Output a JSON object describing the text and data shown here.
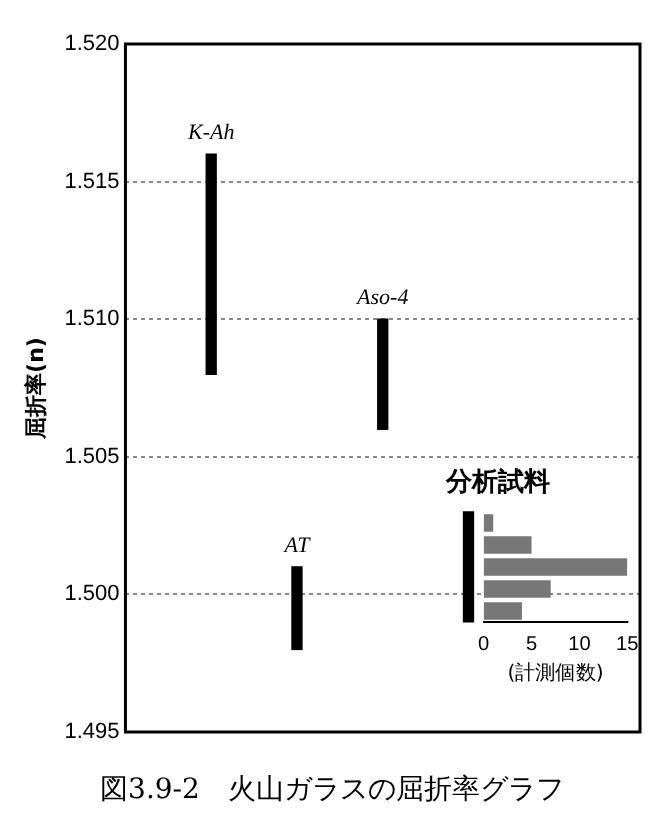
{
  "chart_data": [
    {
      "type": "bar",
      "ylabel": "屈折率(n)",
      "categories": [
        null,
        "K-Ah",
        "AT",
        "Aso-4",
        null,
        null,
        null
      ],
      "base": [
        null,
        1.508,
        1.498,
        1.506,
        1.499,
        null,
        null
      ],
      "values": [
        null,
        0.008,
        0.003,
        0.004,
        0.004,
        null,
        null
      ],
      "color": "#000000",
      "ylim": [
        1.495,
        1.52
      ],
      "yticks": [
        1.495,
        {
          "value": 1.5,
          "label": "1.500"
        },
        1.505,
        {
          "value": 1.51,
          "label": "1.510"
        },
        1.515,
        {
          "value": 1.52,
          "label": "1.520"
        }
      ],
      "grid": "y",
      "legend": false,
      "tick_labels": "y",
      "annotations": [
        "図3.9-2　火山ガラスの屈折率グラフ"
      ]
    },
    {
      "type": "bar",
      "title": "分析試料",
      "xlabel": "(計測個数)",
      "orientation": "horizontal",
      "categories": [
        null,
        null,
        null,
        null,
        null
      ],
      "values": [
        1,
        5,
        15,
        7,
        4
      ],
      "color": "#777777",
      "xlim": [
        0,
        15
      ],
      "xticks": [
        0,
        5,
        10,
        15
      ],
      "tick_labels": "x",
      "legend": false
    }
  ]
}
